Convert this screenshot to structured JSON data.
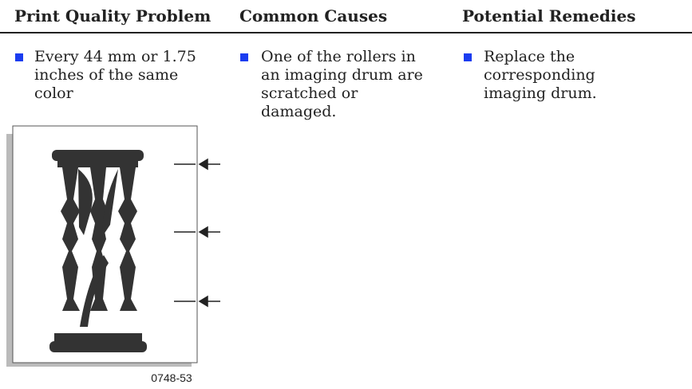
{
  "table": {
    "headers": [
      "Print Quality Problem",
      "Common Causes",
      "Potential Remedies"
    ],
    "rows": [
      [
        [
          "Every 44 mm or 1.75",
          "inches of the same",
          "color"
        ],
        [
          "One of the rollers in",
          "an imaging drum are",
          "scratched or",
          "damaged."
        ],
        [
          "Replace the",
          "corresponding",
          "imaging drum."
        ]
      ]
    ]
  },
  "figure": {
    "caption": "0748-53"
  }
}
